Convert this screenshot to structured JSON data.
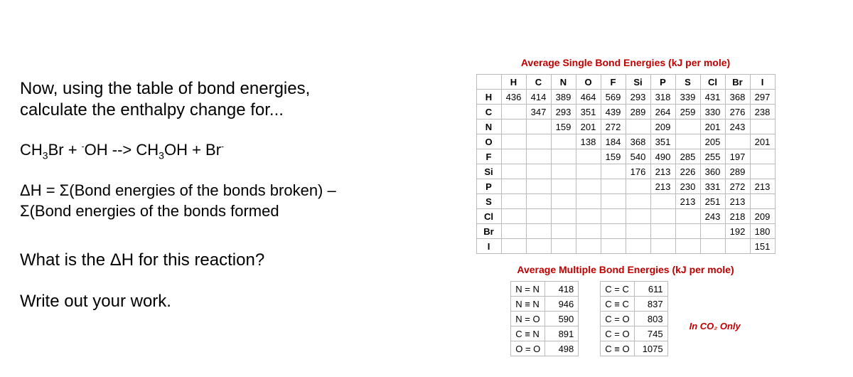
{
  "left": {
    "title_l1": "Now, using the table of bond energies,",
    "title_l2": "calculate the enthalpy change for...",
    "formula_l1": "ΔH = Σ(Bond energies of the bonds broken) –",
    "formula_l2": "Σ(Bond energies of the bonds formed",
    "q2": "What is the ΔH for this reaction?",
    "q3": "Write out your work."
  },
  "eq": {
    "r1": "CH",
    "r1sub": "3",
    "r1b": "Br + ",
    "r1sup": "-",
    "r1c": "OH --> CH",
    "r1sub2": "3",
    "r1d": "OH + Br",
    "r1sup2": "-"
  },
  "single": {
    "title": "Average Single Bond Energies (kJ per mole)",
    "cols": [
      "H",
      "C",
      "N",
      "O",
      "F",
      "Si",
      "P",
      "S",
      "Cl",
      "Br",
      "I"
    ],
    "rowlabels": [
      "H",
      "C",
      "N",
      "O",
      "F",
      "Si",
      "P",
      "S",
      "Cl",
      "Br",
      "I"
    ],
    "rows": [
      [
        "436",
        "414",
        "389",
        "464",
        "569",
        "293",
        "318",
        "339",
        "431",
        "368",
        "297"
      ],
      [
        "",
        "347",
        "293",
        "351",
        "439",
        "289",
        "264",
        "259",
        "330",
        "276",
        "238"
      ],
      [
        "",
        "",
        "159",
        "201",
        "272",
        "",
        "209",
        "",
        "201",
        "243",
        ""
      ],
      [
        "",
        "",
        "",
        "138",
        "184",
        "368",
        "351",
        "",
        "205",
        "",
        "201"
      ],
      [
        "",
        "",
        "",
        "",
        "159",
        "540",
        "490",
        "285",
        "255",
        "197",
        ""
      ],
      [
        "",
        "",
        "",
        "",
        "",
        "176",
        "213",
        "226",
        "360",
        "289",
        ""
      ],
      [
        "",
        "",
        "",
        "",
        "",
        "",
        "213",
        "230",
        "331",
        "272",
        "213"
      ],
      [
        "",
        "",
        "",
        "",
        "",
        "",
        "",
        "213",
        "251",
        "213",
        ""
      ],
      [
        "",
        "",
        "",
        "",
        "",
        "",
        "",
        "",
        "243",
        "218",
        "209"
      ],
      [
        "",
        "",
        "",
        "",
        "",
        "",
        "",
        "",
        "",
        "192",
        "180"
      ],
      [
        "",
        "",
        "",
        "",
        "",
        "",
        "",
        "",
        "",
        "",
        "151"
      ]
    ]
  },
  "multi": {
    "title": "Average Multiple Bond Energies (kJ per mole)",
    "left": [
      [
        "N = N",
        "418"
      ],
      [
        "N ≡ N",
        "946"
      ],
      [
        "N = O",
        "590"
      ],
      [
        "C ≡ N",
        "891"
      ],
      [
        "O = O",
        "498"
      ]
    ],
    "right": [
      [
        "C = C",
        "611"
      ],
      [
        "C ≡ C",
        "837"
      ],
      [
        "C = O",
        "803"
      ],
      [
        "C = O",
        "745"
      ],
      [
        "C ≡ O",
        "1075"
      ]
    ],
    "note": "In CO₂ Only"
  }
}
